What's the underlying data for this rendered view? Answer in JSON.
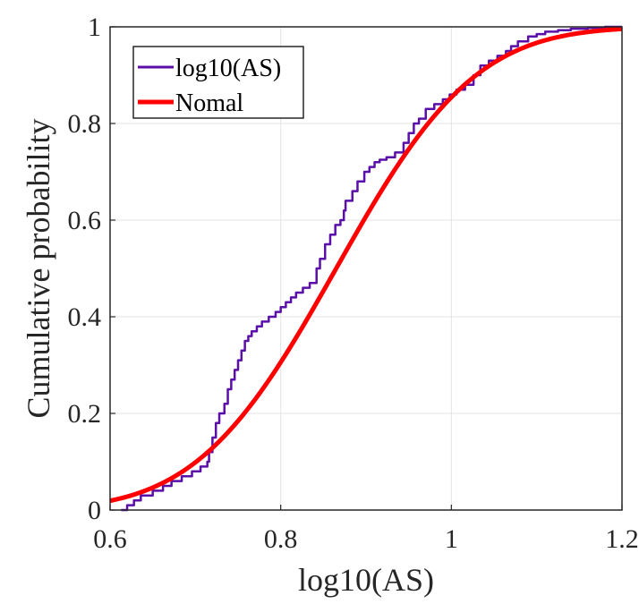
{
  "chart_data": {
    "type": "line",
    "title": "",
    "xlabel": "log10(AS)",
    "ylabel": "Cumulative probability",
    "xlim": [
      0.6,
      1.2
    ],
    "ylim": [
      0,
      1
    ],
    "xticks": [
      0.6,
      0.8,
      1.0,
      1.2
    ],
    "xtick_labels": [
      "0.6",
      "0.8",
      "1",
      "1.2"
    ],
    "yticks": [
      0,
      0.2,
      0.4,
      0.6,
      0.8,
      1.0
    ],
    "ytick_labels": [
      "0",
      "0.2",
      "0.4",
      "0.6",
      "0.8",
      "1"
    ],
    "grid": true,
    "legend_position": "top-left",
    "colors": {
      "empirical": "#5a0fa8",
      "normal": "#ff0000",
      "grid": "#e3e3e3",
      "axis": "#262626"
    },
    "series": [
      {
        "name": "log10(AS)",
        "style": "step",
        "x": [
          0.613,
          0.62,
          0.628,
          0.636,
          0.65,
          0.662,
          0.672,
          0.684,
          0.696,
          0.706,
          0.714,
          0.716,
          0.72,
          0.724,
          0.728,
          0.734,
          0.738,
          0.742,
          0.746,
          0.75,
          0.754,
          0.758,
          0.762,
          0.766,
          0.772,
          0.778,
          0.786,
          0.794,
          0.8,
          0.806,
          0.812,
          0.818,
          0.826,
          0.834,
          0.842,
          0.846,
          0.852,
          0.858,
          0.864,
          0.87,
          0.874,
          0.876,
          0.884,
          0.89,
          0.898,
          0.904,
          0.91,
          0.916,
          0.924,
          0.934,
          0.944,
          0.95,
          0.956,
          0.962,
          0.97,
          0.98,
          0.99,
          0.998,
          1.006,
          1.016,
          1.026,
          1.034,
          1.044,
          1.054,
          1.064,
          1.07,
          1.078,
          1.09,
          1.1,
          1.11,
          1.125,
          1.14,
          1.16,
          1.18
        ],
        "y": [
          0.0,
          0.01,
          0.02,
          0.03,
          0.04,
          0.05,
          0.06,
          0.07,
          0.08,
          0.09,
          0.1,
          0.12,
          0.15,
          0.18,
          0.2,
          0.22,
          0.25,
          0.27,
          0.29,
          0.31,
          0.33,
          0.35,
          0.36,
          0.37,
          0.38,
          0.39,
          0.4,
          0.41,
          0.42,
          0.43,
          0.44,
          0.45,
          0.46,
          0.47,
          0.5,
          0.52,
          0.55,
          0.57,
          0.59,
          0.6,
          0.62,
          0.64,
          0.66,
          0.68,
          0.7,
          0.71,
          0.72,
          0.725,
          0.73,
          0.74,
          0.76,
          0.78,
          0.8,
          0.81,
          0.83,
          0.84,
          0.85,
          0.86,
          0.87,
          0.88,
          0.9,
          0.92,
          0.93,
          0.94,
          0.95,
          0.96,
          0.97,
          0.98,
          0.985,
          0.99,
          0.993,
          0.996,
          0.998,
          1.0
        ]
      },
      {
        "name": "Nomal",
        "style": "normal-cdf",
        "mean": 0.865,
        "std": 0.128
      }
    ]
  }
}
